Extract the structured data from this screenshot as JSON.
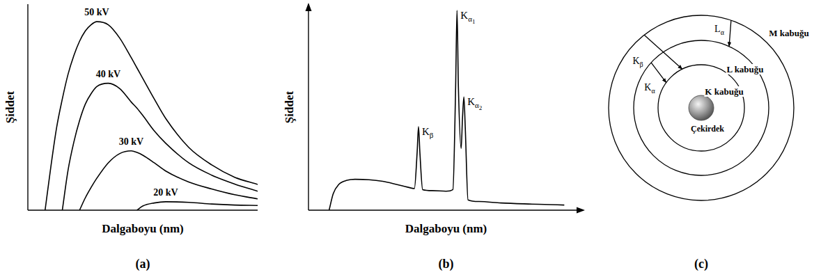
{
  "chart_data": [
    {
      "type": "line",
      "title": "(a)",
      "x_label": "Dalgaboyu (nm)",
      "y_label": "Şiddet",
      "xlim": [
        0,
        100
      ],
      "ylim": [
        0,
        100
      ],
      "tick_labels": false,
      "grid": false,
      "x": [
        7.5,
        10,
        12.5,
        15,
        17.5,
        20,
        22.5,
        25,
        27.5,
        30,
        35,
        40,
        45,
        47.5,
        50,
        55,
        60,
        70,
        80,
        90,
        100
      ],
      "series": [
        {
          "name": "50 kV",
          "color": "#000000",
          "values": [
            0,
            21,
            40,
            54,
            66,
            75,
            82,
            87,
            90,
            91.5,
            90,
            83.5,
            74,
            69,
            64,
            54,
            44.5,
            30.5,
            22,
            16,
            12.5
          ]
        },
        {
          "name": "40 kV",
          "color": "#000000",
          "values": [
            null,
            null,
            null,
            0,
            19.5,
            33,
            43.5,
            51.5,
            56.5,
            60,
            61.6,
            59,
            52.5,
            49.5,
            46,
            38.5,
            32.5,
            23,
            17,
            12.7,
            9.2
          ]
        },
        {
          "name": "30 kV",
          "color": "#000000",
          "values": [
            null,
            null,
            null,
            null,
            null,
            null,
            0,
            6,
            11,
            15.5,
            23,
            27.5,
            28.8,
            28,
            26.7,
            23,
            19,
            13.7,
            10.3,
            7.5,
            5.5
          ]
        },
        {
          "name": "20 kV",
          "color": "#000000",
          "values": [
            null,
            null,
            null,
            null,
            null,
            null,
            null,
            null,
            null,
            null,
            null,
            null,
            null,
            0,
            2,
            3.5,
            4.1,
            3.8,
            3,
            2.5,
            2.3
          ]
        }
      ]
    },
    {
      "type": "line",
      "title": "(b)",
      "x_label": "Dalgaboyu (nm)",
      "y_label": "Şiddet",
      "xlim": [
        0,
        100
      ],
      "ylim": [
        0,
        100
      ],
      "tick_labels": false,
      "grid": false,
      "x": [
        7.5,
        9,
        11,
        14,
        17,
        22,
        27,
        32,
        36,
        38.5,
        39.5,
        40,
        40.5,
        41.5,
        45,
        50,
        52.5,
        53.5,
        54,
        54.5,
        55.5,
        56,
        56.5,
        57,
        58,
        62,
        70,
        80,
        88,
        93
      ],
      "series": [
        {
          "color": "#000000",
          "values": [
            0,
            8,
            12.5,
            14.5,
            15,
            14.8,
            14,
            12.5,
            11.2,
            10.5,
            28,
            40.5,
            28,
            10,
            9.5,
            9.2,
            10,
            60,
            97,
            60,
            30,
            45,
            55,
            40,
            5,
            4.2,
            3.5,
            3,
            2.7,
            2.5
          ]
        }
      ],
      "annotations": [
        {
          "base": "K",
          "sub": "β",
          "x": 40
        },
        {
          "base": "K",
          "sub": "α",
          "subsub": "1",
          "x": 54
        },
        {
          "base": "K",
          "sub": "α",
          "subsub": "2",
          "x": 56.5
        }
      ]
    }
  ],
  "diagram": {
    "title": "(c)",
    "nucleus": "Çekirdek",
    "shells": [
      "K kabuğu",
      "L kabuğu",
      "M kabuğu"
    ],
    "transitions": [
      {
        "base": "K",
        "sub": "α"
      },
      {
        "base": "K",
        "sub": "β"
      },
      {
        "base": "L",
        "sub": "α"
      }
    ]
  }
}
